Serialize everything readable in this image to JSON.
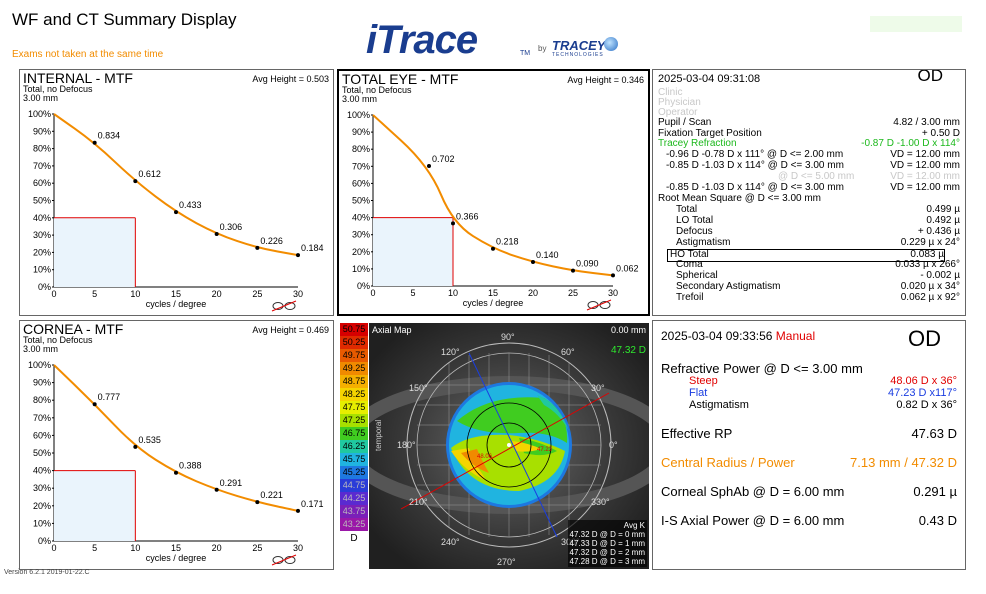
{
  "app": {
    "title": "WF and CT Summary Display",
    "warning": "Exams not taken at the same time",
    "version": "Version 6.2.1 2019-01-22.C"
  },
  "logo": {
    "main": "iTrace",
    "tm": "TM",
    "by": "by",
    "brand": "TRACEY",
    "brand_sub": "TECHNOLOGIES"
  },
  "colors": {
    "accent_orange": "#f28c00",
    "red": "#e00000",
    "blue": "#1a3de0",
    "green": "#1cb81c"
  },
  "mtf_panels": [
    {
      "title": "INTERNAL - MTF",
      "subtitle1": "Total, no Defocus",
      "subtitle2": "3.00 mm",
      "avg": "Avg Height = 0.503",
      "xlabel": "cycles / degree",
      "y_ticks": [
        "100%",
        "90%",
        "80%",
        "70%",
        "60%",
        "50%",
        "40%",
        "30%",
        "20%",
        "10%",
        "0%"
      ],
      "x_ticks": [
        "0",
        "5",
        "10",
        "15",
        "20",
        "25",
        "30"
      ],
      "points": [
        {
          "x": 5,
          "y": 0.834,
          "label": "0.834"
        },
        {
          "x": 10,
          "y": 0.612,
          "label": "0.612"
        },
        {
          "x": 15,
          "y": 0.433,
          "label": "0.433"
        },
        {
          "x": 20,
          "y": 0.306,
          "label": "0.306"
        },
        {
          "x": 25,
          "y": 0.226,
          "label": "0.226"
        },
        {
          "x": 30,
          "y": 0.184,
          "label": "0.184"
        }
      ]
    },
    {
      "title": "TOTAL EYE - MTF",
      "subtitle1": "Total, no Defocus",
      "subtitle2": "3.00 mm",
      "avg": "Avg Height = 0.346",
      "xlabel": "cycles / degree",
      "y_ticks": [
        "100%",
        "90%",
        "80%",
        "70%",
        "60%",
        "50%",
        "40%",
        "30%",
        "20%",
        "10%",
        "0%"
      ],
      "x_ticks": [
        "0",
        "5",
        "10",
        "15",
        "20",
        "25",
        "30"
      ],
      "points": [
        {
          "x": 7,
          "y": 0.702,
          "label": "0.702"
        },
        {
          "x": 10,
          "y": 0.366,
          "label": "0.366"
        },
        {
          "x": 15,
          "y": 0.218,
          "label": "0.218"
        },
        {
          "x": 20,
          "y": 0.14,
          "label": "0.140"
        },
        {
          "x": 25,
          "y": 0.09,
          "label": "0.090"
        },
        {
          "x": 30,
          "y": 0.062,
          "label": "0.062"
        }
      ]
    },
    {
      "title": "CORNEA - MTF",
      "subtitle1": "Total, no Defocus",
      "subtitle2": "3.00 mm",
      "avg": "Avg Height = 0.469",
      "xlabel": "cycles / degree",
      "y_ticks": [
        "100%",
        "90%",
        "80%",
        "70%",
        "60%",
        "50%",
        "40%",
        "30%",
        "20%",
        "10%",
        "0%"
      ],
      "x_ticks": [
        "0",
        "5",
        "10",
        "15",
        "20",
        "25",
        "30"
      ],
      "points": [
        {
          "x": 5,
          "y": 0.777,
          "label": "0.777"
        },
        {
          "x": 10,
          "y": 0.535,
          "label": "0.535"
        },
        {
          "x": 15,
          "y": 0.388,
          "label": "0.388"
        },
        {
          "x": 20,
          "y": 0.291,
          "label": "0.291"
        },
        {
          "x": 25,
          "y": 0.221,
          "label": "0.221"
        },
        {
          "x": 30,
          "y": 0.171,
          "label": "0.171"
        }
      ]
    }
  ],
  "chart_data": [
    {
      "type": "line",
      "title": "INTERNAL - MTF",
      "xlabel": "cycles / degree",
      "x": [
        0,
        5,
        10,
        15,
        20,
        25,
        30
      ],
      "values": [
        1.0,
        0.834,
        0.612,
        0.433,
        0.306,
        0.226,
        0.184
      ],
      "ylim": [
        0,
        1
      ],
      "xlim": [
        0,
        30
      ]
    },
    {
      "type": "line",
      "title": "TOTAL EYE - MTF",
      "xlabel": "cycles / degree",
      "x": [
        0,
        7,
        10,
        15,
        20,
        25,
        30
      ],
      "values": [
        1.0,
        0.702,
        0.366,
        0.218,
        0.14,
        0.09,
        0.062
      ],
      "ylim": [
        0,
        1
      ],
      "xlim": [
        0,
        30
      ]
    },
    {
      "type": "line",
      "title": "CORNEA - MTF",
      "xlabel": "cycles / degree",
      "x": [
        0,
        5,
        10,
        15,
        20,
        25,
        30
      ],
      "values": [
        1.0,
        0.777,
        0.535,
        0.388,
        0.291,
        0.221,
        0.171
      ],
      "ylim": [
        0,
        1
      ],
      "xlim": [
        0,
        30
      ]
    }
  ],
  "wf_info": {
    "datetime": "2025-03-04  09:31:08",
    "eye": "OD",
    "clinic": "Clinic",
    "physician": "Physician",
    "operator": "Operator",
    "pupil_label": "Pupil / Scan",
    "pupil_value": "4.82 / 3.00 mm",
    "fixation_label": "Fixation Target Position",
    "fixation_value": "+ 0.50 D",
    "tracey_label": "Tracey Refraction",
    "tracey_value": "-0.87 D -1.00 D x 114°",
    "refr": [
      {
        "l": "-0.96 D   -0.78 D x 111° @ D <= 2.00 mm",
        "r": "VD = 12.00 mm",
        "gray": false
      },
      {
        "l": "-0.85 D   -1.03 D x 114° @ D <= 3.00 mm",
        "r": "VD = 12.00 mm",
        "gray": false
      },
      {
        "l": "@ D <= 5.00 mm",
        "r": "VD = 12.00 mm",
        "gray": true
      },
      {
        "l": "-0.85 D   -1.03 D x 114° @ D <= 3.00 mm",
        "r": "VD = 12.00 mm",
        "gray": false
      }
    ],
    "rms_label": "Root Mean Square @ D <= 3.00 mm",
    "rms": [
      {
        "l": "Total",
        "r": "0.499 µ"
      },
      {
        "l": "LO Total",
        "r": "0.492 µ"
      },
      {
        "l": "Defocus",
        "r": "+ 0.436 µ"
      },
      {
        "l": "Astigmatism",
        "r": "0.229 µ x   24°"
      },
      {
        "l": "HO Total",
        "r": "0.083 µ"
      },
      {
        "l": "Coma",
        "r": "0.033 µ x 266°"
      },
      {
        "l": "Spherical",
        "r": "- 0.002 µ"
      },
      {
        "l": "Secondary Astigmatism",
        "r": "0.020 µ x   34°"
      },
      {
        "l": "Trefoil",
        "r": "0.062 µ x   92°"
      }
    ]
  },
  "ct_info": {
    "datetime": "2025-03-04  09:33:56",
    "manual": "Manual",
    "eye": "OD",
    "rp_label": "Refractive Power @ D <= 3.00 mm",
    "steep_label": "Steep",
    "steep_value": "48.06 D x  36°",
    "flat_label": "Flat",
    "flat_value": "47.23 D x117°",
    "astig_label": "Astigmatism",
    "astig_value": "0.82 D x  36°",
    "erp_label": "Effective RP",
    "erp_value": "47.63 D",
    "cr_label": "Central Radius / Power",
    "cr_value": "7.13 mm / 47.32 D",
    "sph_label": "Corneal SphAb @ D = 6.00 mm",
    "sph_value": "0.291 µ",
    "is_label": "I-S Axial Power @ D = 6.00 mm",
    "is_value": "0.43 D"
  },
  "axial_map": {
    "title": "Axial Map",
    "top_right": "0.00 mm",
    "top_right_green": "47.32 D",
    "scale": [
      {
        "v": "50.75",
        "c": "#d60000"
      },
      {
        "v": "50.25",
        "c": "#e02a00"
      },
      {
        "v": "49.75",
        "c": "#e85a00"
      },
      {
        "v": "49.25",
        "c": "#f08a00"
      },
      {
        "v": "48.75",
        "c": "#f5b000"
      },
      {
        "v": "48.25",
        "c": "#f5d400"
      },
      {
        "v": "47.75",
        "c": "#e6ee00"
      },
      {
        "v": "47.25",
        "c": "#a8e000"
      },
      {
        "v": "46.75",
        "c": "#40cc20"
      },
      {
        "v": "46.25",
        "c": "#20c8a0"
      },
      {
        "v": "45.75",
        "c": "#20b4e0"
      },
      {
        "v": "45.25",
        "c": "#1e78e0"
      },
      {
        "v": "44.75",
        "c": "#2a3cd8"
      },
      {
        "v": "44.25",
        "c": "#5a2ad0"
      },
      {
        "v": "43.75",
        "c": "#7a20b8"
      },
      {
        "v": "43.25",
        "c": "#9a18a8"
      }
    ],
    "unit": "D",
    "avgk_title": "Avg K",
    "avgk": [
      "47.32 D @ D = 0 mm",
      "47.33 D @ D = 1 mm",
      "47.32 D @ D = 2 mm",
      "47.28 D @ D = 3 mm"
    ],
    "angles": [
      "90°",
      "60°",
      "120°",
      "150°",
      "30°",
      "180°",
      "0°",
      "210°",
      "330°",
      "240°",
      "300°",
      "270°"
    ],
    "temporal": "temporal",
    "steep_mark": "48.06",
    "flat_mark": "47.23"
  }
}
